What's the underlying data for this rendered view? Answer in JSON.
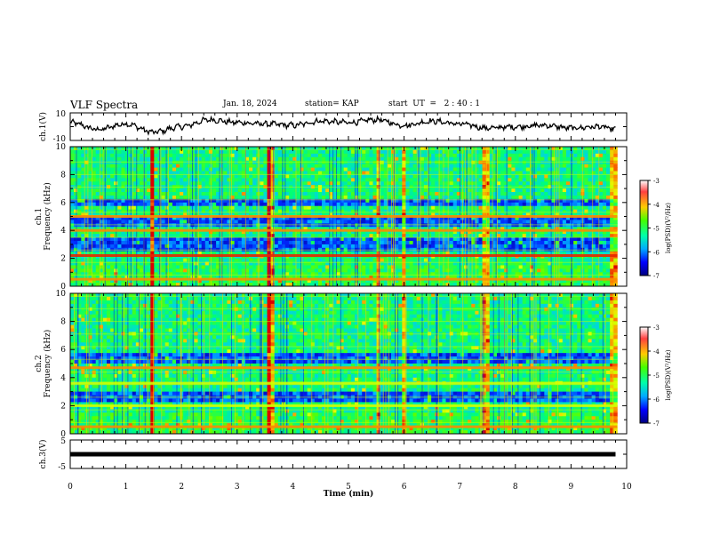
{
  "header": {
    "title": "VLF Spectra",
    "date": "Jan. 18, 2024",
    "station": "station= KAP",
    "start": "start  UT  =   2 : 40 : 1"
  },
  "chart_data": [
    {
      "type": "line",
      "ylabel": "ch.1(V)",
      "yticks": [
        "10",
        "-10"
      ],
      "ylim": [
        -10,
        10
      ],
      "xlim": [
        0,
        10
      ],
      "description_of_series": "noisy oscillating waveform ~0 to +5 V until ~7.2 min, then near -2 to +1 V",
      "x": [
        0,
        0.5,
        1,
        1.5,
        2,
        2.5,
        3,
        3.5,
        4,
        4.5,
        5,
        5.5,
        6,
        6.5,
        7,
        7.5,
        8,
        8.5,
        9,
        9.5,
        9.8
      ],
      "y": [
        3,
        -2,
        2,
        -4,
        0,
        5,
        3,
        2,
        1,
        4,
        3,
        5,
        1,
        4,
        2,
        -1,
        0,
        1,
        -1,
        0,
        -2
      ]
    },
    {
      "type": "heatmap",
      "ylabel": "ch.1\nFrequency (kHz)",
      "yticks": [
        "0",
        "2",
        "4",
        "6",
        "8",
        "10"
      ],
      "ylim": [
        0,
        10
      ],
      "xlim": [
        0,
        10
      ],
      "colorbar": {
        "label": "log(PSD)(V²/Hz)",
        "ticks": [
          "-3",
          "-4",
          "-5",
          "-6",
          "-7"
        ],
        "range": [
          -7,
          -3
        ]
      },
      "bands_khz": [
        {
          "f": 5.0,
          "level": "high"
        },
        {
          "f": 4.0,
          "level": "high"
        },
        {
          "f": 2.2,
          "level": "very high"
        },
        {
          "f": 0.5,
          "level": "high"
        }
      ],
      "low_regions_khz": [
        [
          2.6,
          3.6
        ],
        [
          4.2,
          4.9
        ],
        [
          5.8,
          6.3
        ]
      ]
    },
    {
      "type": "heatmap",
      "ylabel": "ch.2\nFrequency (kHz)",
      "yticks": [
        "0",
        "2",
        "4",
        "6",
        "8",
        "10"
      ],
      "ylim": [
        0,
        10
      ],
      "xlim": [
        0,
        10
      ],
      "colorbar": {
        "label": "log(PSD)(V²/Hz)",
        "ticks": [
          "-3",
          "-4",
          "-5",
          "-6",
          "-7"
        ],
        "range": [
          -7,
          -3
        ]
      },
      "bands_khz": [
        {
          "f": 4.7,
          "level": "high"
        },
        {
          "f": 3.6,
          "level": "mid"
        },
        {
          "f": 2.0,
          "level": "mid"
        },
        {
          "f": 0.5,
          "level": "high"
        }
      ],
      "low_regions_khz": [
        [
          2.2,
          3.0
        ],
        [
          5.0,
          5.8
        ]
      ]
    },
    {
      "type": "line",
      "ylabel": "ch.3(V)",
      "yticks": [
        "5",
        "-5"
      ],
      "ylim": [
        -5,
        5
      ],
      "xlim": [
        0,
        10
      ],
      "xlabel": "Time  (min)",
      "xticks": [
        "0",
        "1",
        "2",
        "3",
        "4",
        "5",
        "6",
        "7",
        "8",
        "9",
        "10"
      ],
      "x": [
        0,
        9.8
      ],
      "y": [
        0,
        0
      ]
    }
  ],
  "colors": {
    "colormap": [
      "#ffffff",
      "#ff0000",
      "#ffff00",
      "#00ff00",
      "#00ffff",
      "#0000ff",
      "#00007f"
    ]
  }
}
